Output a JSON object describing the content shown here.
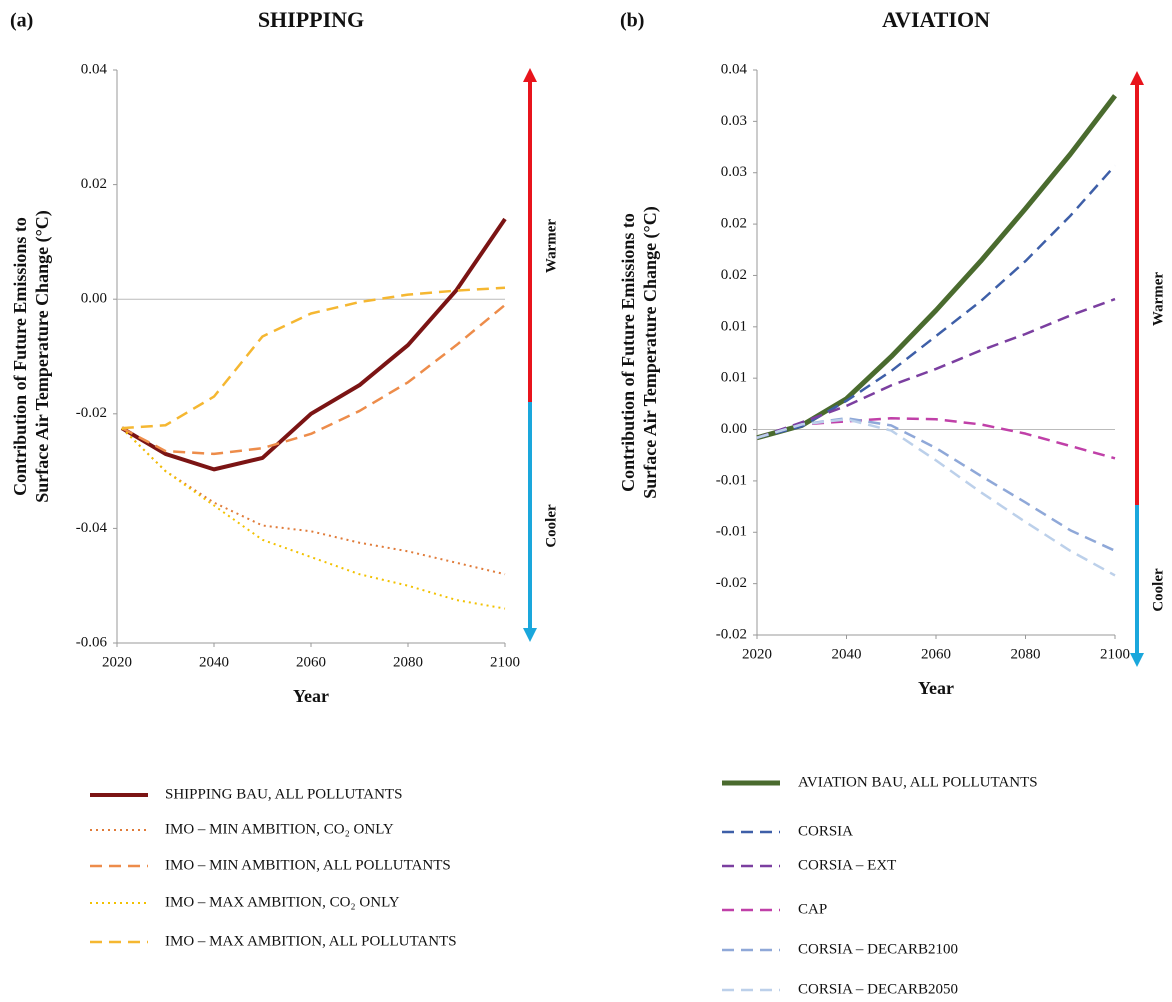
{
  "chart_data": [
    {
      "type": "line",
      "panel_label": "(a)",
      "title": "SHIPPING",
      "ylabel": [
        "Contribution of Future Emissions to",
        "Surface Air Temperature Change (°C)"
      ],
      "xlabel": "Year",
      "annotations": [
        "Warmer",
        "Cooler"
      ],
      "x": [
        2021,
        2030,
        2040,
        2050,
        2060,
        2070,
        2080,
        2090,
        2100
      ],
      "xlim": [
        2020,
        2100
      ],
      "xticks": [
        2020,
        2040,
        2060,
        2080,
        2100
      ],
      "ylim": [
        -0.06,
        0.04
      ],
      "yticks": [
        0.04,
        0.02,
        {
          "value": 0,
          "label": "0.00"
        },
        -0.02,
        -0.04,
        -0.06
      ],
      "series": [
        {
          "name": "SHIPPING BAU, ALL POLLUTANTS",
          "color": "#7b1414",
          "dash": "solid",
          "width": 4,
          "values": [
            -0.0225,
            -0.027,
            -0.0297,
            -0.0277,
            -0.02,
            -0.015,
            -0.008,
            0.0016,
            0.014
          ]
        },
        {
          "name": "IMO – MIN AMBITION, CO₂ ONLY",
          "color": "#e07b39",
          "dash": "dotted",
          "width": 2,
          "values": [
            -0.0225,
            -0.03,
            -0.0355,
            -0.0395,
            -0.0405,
            -0.0425,
            -0.044,
            -0.046,
            -0.048
          ]
        },
        {
          "name": "IMO – MIN AMBITION, ALL POLLUTANTS",
          "color": "#ed8c4a",
          "dash": "dashed",
          "width": 2.5,
          "values": [
            -0.0225,
            -0.0265,
            -0.027,
            -0.026,
            -0.0235,
            -0.0195,
            -0.0145,
            -0.008,
            -0.001
          ]
        },
        {
          "name": "IMO – MAX AMBITION, CO₂ ONLY",
          "color": "#f2c100",
          "dash": "dotted",
          "width": 2,
          "values": [
            -0.0225,
            -0.03,
            -0.036,
            -0.042,
            -0.045,
            -0.048,
            -0.05,
            -0.0525,
            -0.054
          ]
        },
        {
          "name": "IMO – MAX AMBITION, ALL POLLUTANTS",
          "color": "#f5b731",
          "dash": "dashed",
          "width": 2.5,
          "values": [
            -0.0225,
            -0.022,
            -0.017,
            -0.0065,
            -0.0025,
            -0.0005,
            0.0008,
            0.0015,
            0.002
          ]
        }
      ]
    },
    {
      "type": "line",
      "panel_label": "(b)",
      "title": "AVIATION",
      "ylabel": [
        "Contribution of Future Emissions to",
        "Surface Air Temperature Change (°C)"
      ],
      "xlabel": "Year",
      "annotations": [
        "Warmer",
        "Cooler"
      ],
      "x": [
        2020,
        2030,
        2040,
        2050,
        2060,
        2070,
        2080,
        2090,
        2100
      ],
      "xlim": [
        2020,
        2100
      ],
      "xticks": [
        2020,
        2040,
        2060,
        2080,
        2100
      ],
      "ylim": [
        -0.02,
        0.035
      ],
      "yticks": [
        {
          "value": 0.035,
          "label": "0.04"
        },
        0.03,
        {
          "value": 0.025,
          "label": "0.03"
        },
        0.02,
        {
          "value": 0.015,
          "label": "0.02"
        },
        0.01,
        {
          "value": 0.005,
          "label": "0.01"
        },
        {
          "value": 0,
          "label": "0.00"
        },
        {
          "value": -0.005,
          "label": "-0.01"
        },
        -0.01,
        {
          "value": -0.015,
          "label": "-0.02"
        },
        -0.02
      ],
      "series": [
        {
          "name": "AVIATION BAU, ALL POLLUTANTS",
          "color": "#4a6b2e",
          "dash": "solid",
          "width": 5,
          "values": [
            -0.0008,
            0.0004,
            0.003,
            0.0071,
            0.0116,
            0.0164,
            0.0215,
            0.0268,
            0.0325
          ]
        },
        {
          "name": "CORSIA",
          "color": "#3e5fa8",
          "dash": "dashed",
          "width": 2.5,
          "values": [
            -0.0008,
            0.0003,
            0.0028,
            0.0057,
            0.0091,
            0.0125,
            0.0164,
            0.0208,
            0.0257
          ]
        },
        {
          "name": "CORSIA – EXT",
          "color": "#7b3fa0",
          "dash": "dashed",
          "width": 2.5,
          "values": [
            -0.0008,
            0.0007,
            0.0023,
            0.0043,
            0.0059,
            0.0077,
            0.0093,
            0.0111,
            0.0127
          ]
        },
        {
          "name": "CAP",
          "color": "#c040a8",
          "dash": "dashed",
          "width": 2.5,
          "values": [
            -0.0008,
            0.0005,
            0.0008,
            0.0011,
            0.001,
            0.0005,
            -0.0004,
            -0.0016,
            -0.0028
          ]
        },
        {
          "name": "CORSIA – DECARB2100",
          "color": "#8fa8d8",
          "dash": "dashed",
          "width": 2.5,
          "values": [
            -0.0008,
            0.0005,
            0.0011,
            0.0004,
            -0.0018,
            -0.0045,
            -0.0071,
            -0.0098,
            -0.0118
          ]
        },
        {
          "name": "CORSIA – DECARB2050",
          "color": "#bcd0ea",
          "dash": "dashed",
          "width": 2.5,
          "values": [
            -0.0008,
            0.0005,
            0.001,
            -0.0001,
            -0.003,
            -0.0061,
            -0.009,
            -0.0118,
            -0.0142
          ]
        }
      ]
    }
  ]
}
